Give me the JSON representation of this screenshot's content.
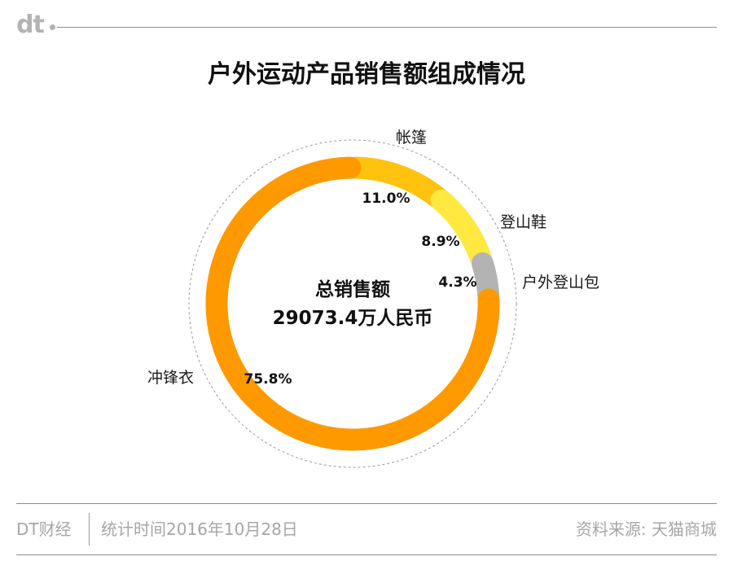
{
  "header": {
    "logo_text": "dt"
  },
  "title": "户外运动产品销售额组成情况",
  "chart_data": {
    "type": "pie",
    "variant": "donut",
    "title": "户外运动产品销售额组成情况",
    "center_label": "总销售额",
    "center_value": "29073.4万人民币",
    "segments": [
      {
        "name": "帐篷",
        "value": 11.0,
        "label": "11.0%",
        "color": "#ffc20e"
      },
      {
        "name": "登山鞋",
        "value": 8.9,
        "label": "8.9%",
        "color": "#ffe83f"
      },
      {
        "name": "户外登山包",
        "value": 4.3,
        "label": "4.3%",
        "color": "#b3b3b3"
      },
      {
        "name": "冲锋衣",
        "value": 75.8,
        "label": "75.8%",
        "color": "#ff9900"
      }
    ]
  },
  "footer": {
    "brand": "DT财经",
    "date": "统计时间2016年10月28日",
    "source": "资料来源: 天猫商城"
  }
}
